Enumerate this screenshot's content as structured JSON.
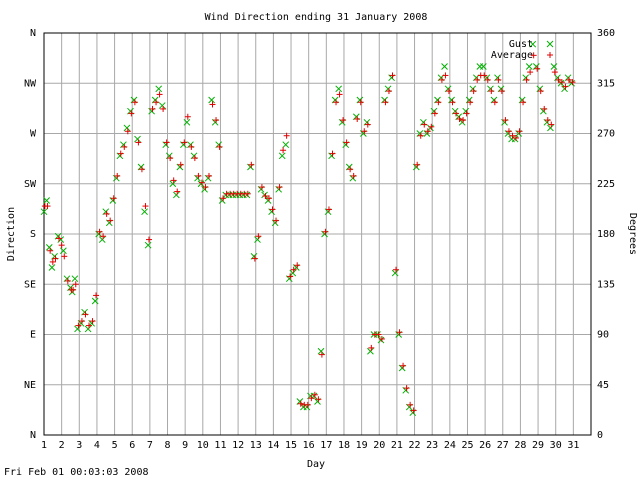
{
  "chart_data": {
    "type": "scatter",
    "title": "Wind Direction ending 31 January 2008",
    "xlabel": "Day",
    "ylabel_left": "Direction",
    "ylabel_right": "Degrees",
    "footer": "Fri Feb 01 00:03:03 2008",
    "xlim": [
      1,
      32
    ],
    "ylim": [
      0,
      360
    ],
    "x_ticks": [
      "1",
      "2",
      "3",
      "4",
      "5",
      "6",
      "7",
      "8",
      "9",
      "10",
      "11",
      "12",
      "13",
      "14",
      "15",
      "16",
      "17",
      "18",
      "19",
      "20",
      "21",
      "22",
      "23",
      "24",
      "25",
      "26",
      "27",
      "28",
      "29",
      "30",
      "31"
    ],
    "left_ticks": [
      {
        "label": "N",
        "value": 0
      },
      {
        "label": "NE",
        "value": 45
      },
      {
        "label": "E",
        "value": 90
      },
      {
        "label": "SE",
        "value": 135
      },
      {
        "label": "S",
        "value": 180
      },
      {
        "label": "SW",
        "value": 225
      },
      {
        "label": "W",
        "value": 270
      },
      {
        "label": "NW",
        "value": 315
      },
      {
        "label": "N",
        "value": 360
      }
    ],
    "right_ticks": [
      "0",
      "45",
      "90",
      "135",
      "180",
      "225",
      "270",
      "315",
      "360"
    ],
    "grid": true,
    "legend_position": "top-right",
    "series": [
      {
        "name": "Gust",
        "marker": "cross",
        "color": "#00b000",
        "points": [
          [
            1.0,
            200
          ],
          [
            1.15,
            210
          ],
          [
            1.3,
            168
          ],
          [
            1.45,
            150
          ],
          [
            1.6,
            160
          ],
          [
            1.8,
            178
          ],
          [
            1.95,
            175
          ],
          [
            2.1,
            165
          ],
          [
            2.3,
            140
          ],
          [
            2.5,
            132
          ],
          [
            2.6,
            128
          ],
          [
            2.75,
            140
          ],
          [
            2.9,
            95
          ],
          [
            3.1,
            100
          ],
          [
            3.3,
            110
          ],
          [
            3.5,
            95
          ],
          [
            3.7,
            100
          ],
          [
            3.9,
            120
          ],
          [
            4.1,
            180
          ],
          [
            4.3,
            175
          ],
          [
            4.5,
            200
          ],
          [
            4.7,
            190
          ],
          [
            4.9,
            210
          ],
          [
            5.1,
            230
          ],
          [
            5.3,
            250
          ],
          [
            5.5,
            260
          ],
          [
            5.7,
            275
          ],
          [
            5.9,
            290
          ],
          [
            6.1,
            300
          ],
          [
            6.3,
            265
          ],
          [
            6.5,
            240
          ],
          [
            6.7,
            200
          ],
          [
            6.9,
            170
          ],
          [
            7.1,
            290
          ],
          [
            7.3,
            300
          ],
          [
            7.5,
            310
          ],
          [
            7.7,
            295
          ],
          [
            7.9,
            260
          ],
          [
            8.1,
            250
          ],
          [
            8.3,
            225
          ],
          [
            8.5,
            215
          ],
          [
            8.7,
            240
          ],
          [
            8.9,
            260
          ],
          [
            9.1,
            280
          ],
          [
            9.3,
            260
          ],
          [
            9.5,
            250
          ],
          [
            9.7,
            230
          ],
          [
            9.9,
            225
          ],
          [
            10.1,
            220
          ],
          [
            10.3,
            230
          ],
          [
            10.5,
            300
          ],
          [
            10.7,
            280
          ],
          [
            10.9,
            260
          ],
          [
            11.1,
            210
          ],
          [
            11.3,
            215
          ],
          [
            11.5,
            215
          ],
          [
            11.7,
            215
          ],
          [
            11.9,
            215
          ],
          [
            12.1,
            215
          ],
          [
            12.3,
            215
          ],
          [
            12.5,
            215
          ],
          [
            12.7,
            240
          ],
          [
            12.9,
            160
          ],
          [
            13.1,
            175
          ],
          [
            13.3,
            220
          ],
          [
            13.5,
            215
          ],
          [
            13.7,
            210
          ],
          [
            13.9,
            200
          ],
          [
            14.1,
            190
          ],
          [
            14.3,
            220
          ],
          [
            14.5,
            250
          ],
          [
            14.7,
            260
          ],
          [
            14.9,
            140
          ],
          [
            15.1,
            145
          ],
          [
            15.3,
            150
          ],
          [
            15.5,
            30
          ],
          [
            15.7,
            25
          ],
          [
            15.9,
            25
          ],
          [
            16.1,
            35
          ],
          [
            16.3,
            35
          ],
          [
            16.5,
            30
          ],
          [
            16.7,
            75
          ],
          [
            16.9,
            180
          ],
          [
            17.1,
            200
          ],
          [
            17.3,
            250
          ],
          [
            17.5,
            300
          ],
          [
            17.7,
            310
          ],
          [
            17.9,
            280
          ],
          [
            18.1,
            260
          ],
          [
            18.3,
            240
          ],
          [
            18.5,
            230
          ],
          [
            18.7,
            285
          ],
          [
            18.9,
            300
          ],
          [
            19.1,
            270
          ],
          [
            19.3,
            280
          ],
          [
            19.5,
            75
          ],
          [
            19.7,
            90
          ],
          [
            19.9,
            90
          ],
          [
            20.1,
            85
          ],
          [
            20.3,
            300
          ],
          [
            20.5,
            310
          ],
          [
            20.7,
            320
          ],
          [
            20.9,
            145
          ],
          [
            21.1,
            90
          ],
          [
            21.3,
            60
          ],
          [
            21.5,
            40
          ],
          [
            21.7,
            25
          ],
          [
            21.9,
            20
          ],
          [
            22.1,
            240
          ],
          [
            22.3,
            270
          ],
          [
            22.5,
            280
          ],
          [
            22.7,
            270
          ],
          [
            22.9,
            275
          ],
          [
            23.1,
            290
          ],
          [
            23.3,
            300
          ],
          [
            23.5,
            320
          ],
          [
            23.7,
            330
          ],
          [
            23.9,
            310
          ],
          [
            24.1,
            300
          ],
          [
            24.3,
            290
          ],
          [
            24.5,
            285
          ],
          [
            24.7,
            280
          ],
          [
            24.9,
            290
          ],
          [
            25.1,
            300
          ],
          [
            25.3,
            310
          ],
          [
            25.5,
            320
          ],
          [
            25.7,
            330
          ],
          [
            25.9,
            330
          ],
          [
            26.1,
            320
          ],
          [
            26.3,
            310
          ],
          [
            26.5,
            300
          ],
          [
            26.7,
            320
          ],
          [
            26.9,
            310
          ],
          [
            27.1,
            280
          ],
          [
            27.3,
            270
          ],
          [
            27.5,
            265
          ],
          [
            27.7,
            265
          ],
          [
            27.9,
            270
          ],
          [
            28.1,
            300
          ],
          [
            28.3,
            320
          ],
          [
            28.5,
            330
          ],
          [
            28.7,
            350
          ],
          [
            28.9,
            330
          ],
          [
            29.1,
            310
          ],
          [
            29.3,
            290
          ],
          [
            29.5,
            280
          ],
          [
            29.7,
            275
          ],
          [
            29.9,
            330
          ],
          [
            30.1,
            320
          ],
          [
            30.3,
            315
          ],
          [
            30.5,
            310
          ],
          [
            30.7,
            320
          ],
          [
            30.9,
            315
          ]
        ]
      },
      {
        "name": "Average",
        "marker": "plus",
        "color": "#e00000",
        "points": [
          [
            1.05,
            205
          ],
          [
            1.2,
            205
          ],
          [
            1.35,
            165
          ],
          [
            1.5,
            155
          ],
          [
            1.65,
            158
          ],
          [
            1.85,
            176
          ],
          [
            2.0,
            170
          ],
          [
            2.15,
            160
          ],
          [
            2.35,
            138
          ],
          [
            2.55,
            130
          ],
          [
            2.65,
            130
          ],
          [
            2.8,
            135
          ],
          [
            2.95,
            98
          ],
          [
            3.15,
            102
          ],
          [
            3.35,
            108
          ],
          [
            3.55,
            98
          ],
          [
            3.75,
            102
          ],
          [
            3.95,
            125
          ],
          [
            4.15,
            182
          ],
          [
            4.35,
            178
          ],
          [
            4.55,
            198
          ],
          [
            4.75,
            192
          ],
          [
            4.95,
            212
          ],
          [
            5.15,
            232
          ],
          [
            5.35,
            252
          ],
          [
            5.55,
            258
          ],
          [
            5.75,
            272
          ],
          [
            5.95,
            288
          ],
          [
            6.15,
            298
          ],
          [
            6.35,
            262
          ],
          [
            6.55,
            238
          ],
          [
            6.75,
            205
          ],
          [
            6.95,
            175
          ],
          [
            7.15,
            292
          ],
          [
            7.35,
            298
          ],
          [
            7.55,
            305
          ],
          [
            7.75,
            292
          ],
          [
            7.95,
            262
          ],
          [
            8.15,
            248
          ],
          [
            8.35,
            228
          ],
          [
            8.55,
            218
          ],
          [
            8.75,
            242
          ],
          [
            8.95,
            262
          ],
          [
            9.15,
            285
          ],
          [
            9.35,
            258
          ],
          [
            9.55,
            248
          ],
          [
            9.75,
            232
          ],
          [
            9.95,
            226
          ],
          [
            10.15,
            222
          ],
          [
            10.35,
            232
          ],
          [
            10.55,
            296
          ],
          [
            10.75,
            282
          ],
          [
            10.95,
            258
          ],
          [
            11.15,
            212
          ],
          [
            11.35,
            216
          ],
          [
            11.55,
            216
          ],
          [
            11.75,
            216
          ],
          [
            11.95,
            216
          ],
          [
            12.15,
            216
          ],
          [
            12.35,
            216
          ],
          [
            12.55,
            216
          ],
          [
            12.75,
            242
          ],
          [
            12.95,
            158
          ],
          [
            13.15,
            178
          ],
          [
            13.35,
            222
          ],
          [
            13.55,
            214
          ],
          [
            13.75,
            212
          ],
          [
            13.95,
            202
          ],
          [
            14.15,
            192
          ],
          [
            14.35,
            222
          ],
          [
            14.55,
            255
          ],
          [
            14.75,
            268
          ],
          [
            14.95,
            142
          ],
          [
            15.15,
            148
          ],
          [
            15.35,
            152
          ],
          [
            15.55,
            28
          ],
          [
            15.75,
            27
          ],
          [
            15.95,
            27
          ],
          [
            16.15,
            33
          ],
          [
            16.35,
            36
          ],
          [
            16.55,
            32
          ],
          [
            16.75,
            72
          ],
          [
            16.95,
            182
          ],
          [
            17.15,
            202
          ],
          [
            17.35,
            252
          ],
          [
            17.55,
            298
          ],
          [
            17.75,
            305
          ],
          [
            17.95,
            282
          ],
          [
            18.15,
            262
          ],
          [
            18.35,
            238
          ],
          [
            18.55,
            232
          ],
          [
            18.75,
            283
          ],
          [
            18.95,
            298
          ],
          [
            19.15,
            272
          ],
          [
            19.35,
            278
          ],
          [
            19.55,
            78
          ],
          [
            19.75,
            90
          ],
          [
            19.95,
            90
          ],
          [
            20.15,
            86
          ],
          [
            20.35,
            298
          ],
          [
            20.55,
            308
          ],
          [
            20.75,
            322
          ],
          [
            20.95,
            148
          ],
          [
            21.15,
            92
          ],
          [
            21.35,
            62
          ],
          [
            21.55,
            42
          ],
          [
            21.75,
            27
          ],
          [
            21.95,
            22
          ],
          [
            22.15,
            242
          ],
          [
            22.35,
            268
          ],
          [
            22.55,
            278
          ],
          [
            22.75,
            272
          ],
          [
            22.95,
            276
          ],
          [
            23.15,
            288
          ],
          [
            23.35,
            298
          ],
          [
            23.55,
            318
          ],
          [
            23.75,
            322
          ],
          [
            23.95,
            308
          ],
          [
            24.15,
            298
          ],
          [
            24.35,
            288
          ],
          [
            24.55,
            283
          ],
          [
            24.75,
            282
          ],
          [
            24.95,
            288
          ],
          [
            25.15,
            298
          ],
          [
            25.35,
            308
          ],
          [
            25.55,
            318
          ],
          [
            25.75,
            322
          ],
          [
            25.95,
            322
          ],
          [
            26.15,
            318
          ],
          [
            26.35,
            308
          ],
          [
            26.55,
            298
          ],
          [
            26.75,
            318
          ],
          [
            26.95,
            308
          ],
          [
            27.15,
            282
          ],
          [
            27.35,
            272
          ],
          [
            27.55,
            268
          ],
          [
            27.75,
            266
          ],
          [
            27.95,
            272
          ],
          [
            28.15,
            298
          ],
          [
            28.35,
            318
          ],
          [
            28.55,
            325
          ],
          [
            28.75,
            340
          ],
          [
            28.95,
            328
          ],
          [
            29.15,
            308
          ],
          [
            29.35,
            292
          ],
          [
            29.55,
            282
          ],
          [
            29.75,
            278
          ],
          [
            29.95,
            325
          ],
          [
            30.15,
            318
          ],
          [
            30.35,
            316
          ],
          [
            30.55,
            312
          ],
          [
            30.75,
            318
          ],
          [
            30.95,
            316
          ]
        ]
      }
    ]
  }
}
